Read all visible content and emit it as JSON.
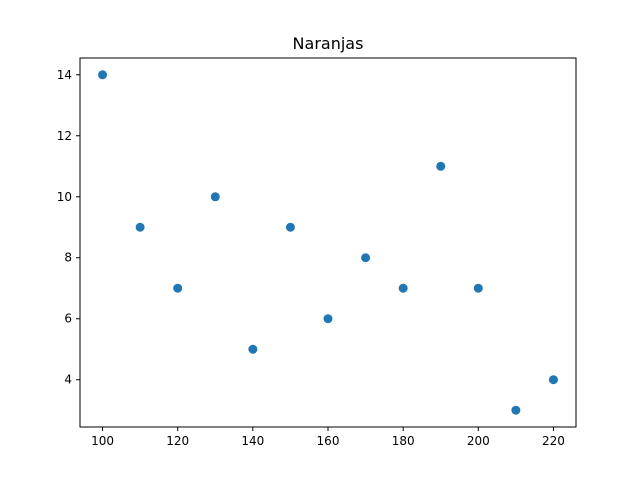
{
  "chart_data": {
    "type": "scatter",
    "title": "Naranjas",
    "xlabel": "",
    "ylabel": "",
    "xlim": [
      94,
      226
    ],
    "ylim": [
      2.45,
      14.55
    ],
    "xticks": [
      100,
      120,
      140,
      160,
      180,
      200,
      220
    ],
    "yticks": [
      4,
      6,
      8,
      10,
      12,
      14
    ],
    "grid": false,
    "color": "#1f77b4",
    "x": [
      100,
      110,
      120,
      130,
      140,
      150,
      160,
      170,
      180,
      190,
      200,
      210,
      220
    ],
    "y": [
      14,
      9,
      7,
      10,
      5,
      9,
      6,
      8,
      7,
      11,
      7,
      3,
      4
    ]
  }
}
